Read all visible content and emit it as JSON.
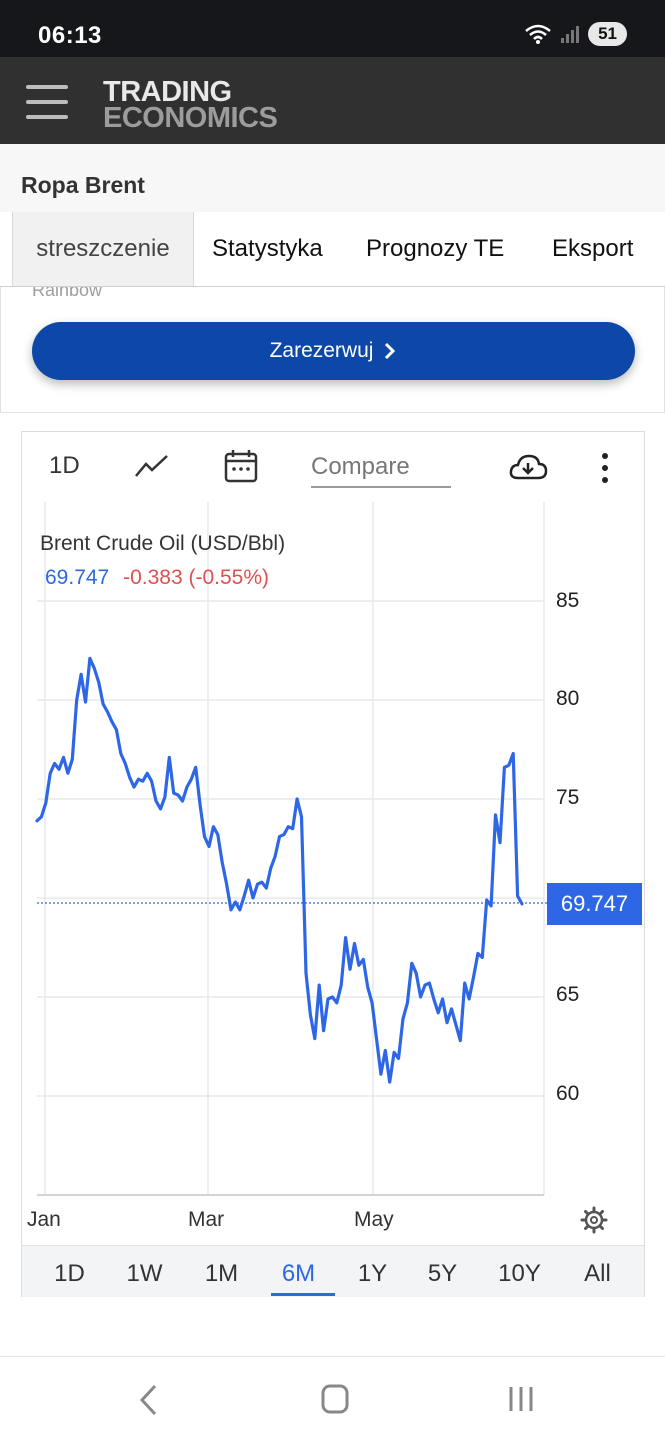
{
  "status_bar": {
    "time": "06:13",
    "battery": "51"
  },
  "header": {
    "logo_line1": "TRADING",
    "logo_line2": "ECONOMICS"
  },
  "page_title": "Ropa Brent",
  "tabs": [
    {
      "label": "streszczenie",
      "active": true
    },
    {
      "label": "Statystyka",
      "active": false
    },
    {
      "label": "Prognozy TE",
      "active": false
    },
    {
      "label": "Eksport",
      "active": false
    }
  ],
  "ad": {
    "label": "Rainbow",
    "button_label": "Zarezerwuj"
  },
  "chart_toolbar": {
    "interval": "1D",
    "compare_placeholder": "Compare"
  },
  "chart": {
    "title": "Brent Crude Oil (USD/Bbl)",
    "last_value": "69.747",
    "change": "-0.383 (-0.55%)",
    "last_badge": "69.747",
    "line_color": "#2e67e6",
    "badge_color": "#2e67e6"
  },
  "chart_data": {
    "type": "line",
    "title": "Brent Crude Oil (USD/Bbl)",
    "x_tick_labels": [
      "Jan",
      "Mar",
      "May"
    ],
    "y_ticks": [
      60,
      65,
      75,
      80,
      85
    ],
    "ylim": [
      55,
      90
    ],
    "grid": true,
    "last_value": 69.747,
    "series": [
      {
        "name": "Brent Crude Oil (USD/Bbl)",
        "values": [
          73.9,
          74.1,
          74.8,
          76.3,
          76.8,
          76.5,
          77.1,
          76.3,
          77.0,
          80.0,
          81.3,
          79.9,
          82.1,
          81.6,
          80.9,
          79.8,
          79.4,
          78.9,
          78.5,
          77.3,
          76.8,
          76.1,
          75.6,
          76.0,
          75.9,
          76.3,
          75.9,
          74.9,
          74.5,
          75.1,
          77.1,
          75.3,
          75.2,
          74.9,
          75.6,
          76.0,
          76.6,
          74.7,
          73.1,
          72.6,
          73.6,
          73.2,
          71.8,
          70.7,
          69.4,
          69.8,
          69.4,
          70.1,
          70.9,
          70.0,
          70.7,
          70.8,
          70.5,
          71.5,
          72.1,
          73.1,
          73.2,
          73.6,
          73.5,
          75.0,
          74.1,
          66.2,
          64.1,
          62.9,
          65.6,
          63.3,
          64.9,
          65.0,
          64.7,
          65.6,
          68.0,
          66.4,
          67.7,
          66.6,
          66.9,
          65.5,
          64.7,
          62.9,
          61.1,
          62.3,
          60.7,
          62.2,
          61.9,
          63.9,
          64.7,
          66.7,
          66.2,
          65.0,
          65.6,
          65.7,
          64.9,
          64.2,
          64.9,
          63.7,
          64.4,
          63.6,
          62.8,
          65.7,
          64.9,
          66.0,
          67.2,
          67.0,
          69.9,
          69.6,
          74.2,
          72.8,
          76.6,
          76.7,
          77.3,
          70.1,
          69.7
        ],
        "color": "#2e67e6"
      }
    ]
  },
  "ranges": [
    {
      "label": "1D",
      "active": false
    },
    {
      "label": "1W",
      "active": false
    },
    {
      "label": "1M",
      "active": false
    },
    {
      "label": "6M",
      "active": true
    },
    {
      "label": "1Y",
      "active": false
    },
    {
      "label": "5Y",
      "active": false
    },
    {
      "label": "10Y",
      "active": false
    },
    {
      "label": "All",
      "active": false
    }
  ],
  "icons": {
    "menu": "hamburger-icon",
    "chart_type": "line-chart-icon",
    "calendar": "calendar-icon",
    "download": "cloud-download-icon",
    "more": "more-vertical-icon",
    "settings": "gear-icon",
    "nav_back": "back-icon",
    "nav_home": "home-icon",
    "nav_recents": "recents-icon"
  }
}
